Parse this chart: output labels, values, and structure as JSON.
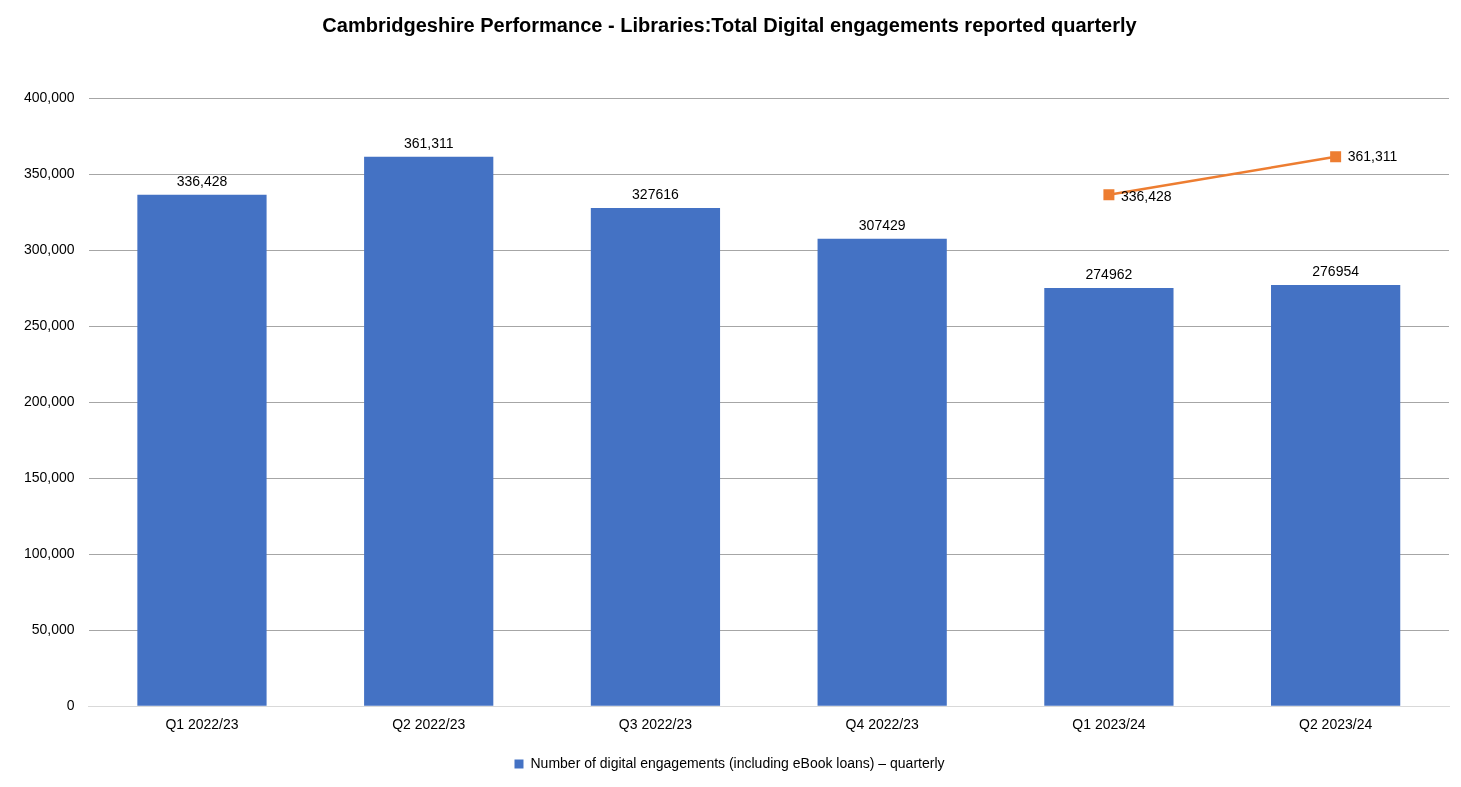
{
  "chart_data": {
    "type": "bar",
    "title": "Cambridgeshire Performance - Libraries:Total Digital engagements reported quarterly",
    "categories": [
      "Q1 2022/23",
      "Q2 2022/23",
      "Q3 2022/23",
      "Q4 2022/23",
      "Q1 2023/24",
      "Q2 2023/24"
    ],
    "series": [
      {
        "name": "Number of digital engagements (including eBook loans) – quarterly",
        "color": "#4472c4",
        "values": [
          336428,
          361311,
          327616,
          307429,
          274962,
          276954
        ],
        "value_labels": [
          "336,428",
          "361,311",
          "327616",
          "307429",
          "274962",
          "276954"
        ]
      },
      {
        "type": "line",
        "color": "#ed7d31",
        "marker": "square",
        "line_style": "solid",
        "values": [
          null,
          null,
          null,
          null,
          336428,
          361311
        ],
        "value_labels": [
          null,
          null,
          null,
          null,
          "336,428",
          "361,311"
        ]
      }
    ],
    "ylim": [
      0,
      400000
    ],
    "yticks": [
      {
        "value": 0,
        "label": "0"
      },
      {
        "value": 50000,
        "label": "50,000"
      },
      {
        "value": 100000,
        "label": "100,000"
      },
      {
        "value": 150000,
        "label": "150,000"
      },
      {
        "value": 200000,
        "label": "200,000"
      },
      {
        "value": 250000,
        "label": "250,000"
      },
      {
        "value": 300000,
        "label": "300,000"
      },
      {
        "value": 350000,
        "label": "350,000"
      },
      {
        "value": 400000,
        "label": "400,000"
      }
    ],
    "grid": "y",
    "legend": "bottom"
  }
}
